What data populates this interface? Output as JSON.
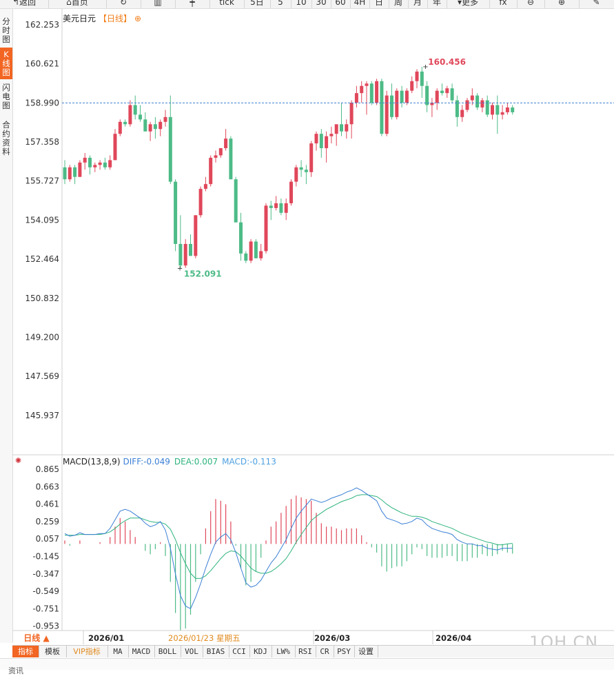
{
  "toolbar": {
    "back_label": "返回",
    "home_label": "首页",
    "tick_label": "tick",
    "periods": [
      "5日",
      "5",
      "10",
      "30",
      "60",
      "4H",
      "日",
      "周",
      "月",
      "年"
    ],
    "more_label": "更多"
  },
  "sidebar": {
    "tabs": [
      {
        "label": "分时图"
      },
      {
        "label": "K线图"
      },
      {
        "label": "闪电图"
      },
      {
        "label": "合约资料"
      }
    ]
  },
  "chart": {
    "symbol": "美元日元",
    "period_tag": "【日线】",
    "plus": "⊕"
  },
  "macd": {
    "name": "MACD(13,8,9)",
    "diff": "DIFF:-0.049",
    "dea": "DEA:0.007",
    "macd": "MACD:-0.113"
  },
  "x_axis": {
    "labels": [
      "2026/01",
      "2026/01/23 星期五",
      "2026/03",
      "2026/04"
    ]
  },
  "period_button": "日线 ▲",
  "indicator_tabs": [
    "指标",
    "模板",
    "VIP指标",
    "MA",
    "MACD",
    "BOLL",
    "VOL",
    "BIAS",
    "CCI",
    "KDJ",
    "LW%",
    "RSI",
    "CR",
    "PSY",
    "设置"
  ],
  "watermark": "1QH.CN",
  "bottom_label": "资讯",
  "colors": {
    "up": "#e0475a",
    "down": "#4dbb87",
    "accent": "#f26522",
    "diff_line": "#3a7fd5",
    "dea_line": "#2db37d",
    "dashed_line": "#3b7fd0"
  },
  "chart_data": [
    {
      "type": "candlestick",
      "title": "美元日元",
      "y_ticks": [
        162.253,
        160.621,
        158.99,
        157.358,
        155.727,
        154.095,
        152.464,
        150.832,
        149.2,
        147.569,
        145.937
      ],
      "ylim": [
        144.5,
        162.7
      ],
      "current_price": 158.99,
      "annotations": {
        "high": 160.456,
        "low": 152.091
      },
      "candles": [
        [
          156.3,
          156.6,
          155.6,
          155.8
        ],
        [
          155.8,
          156.4,
          155.7,
          156.3
        ],
        [
          156.3,
          156.4,
          155.6,
          155.9
        ],
        [
          155.9,
          156.6,
          155.9,
          156.5
        ],
        [
          156.5,
          156.9,
          156.2,
          156.7
        ],
        [
          156.7,
          156.8,
          156.0,
          156.3
        ],
        [
          156.3,
          156.5,
          156.1,
          156.4
        ],
        [
          156.4,
          156.6,
          156.2,
          156.5
        ],
        [
          156.5,
          156.7,
          156.2,
          156.3
        ],
        [
          156.3,
          156.8,
          156.2,
          156.6
        ],
        [
          156.6,
          157.9,
          156.6,
          157.7
        ],
        [
          157.7,
          158.3,
          157.6,
          158.2
        ],
        [
          158.2,
          158.3,
          158.0,
          158.1
        ],
        [
          158.1,
          159.1,
          158.0,
          158.9
        ],
        [
          158.9,
          159.3,
          158.3,
          158.5
        ],
        [
          158.5,
          158.9,
          158.2,
          158.3
        ],
        [
          158.3,
          158.6,
          157.8,
          157.8
        ],
        [
          157.8,
          158.2,
          157.4,
          158.1
        ],
        [
          158.1,
          158.4,
          157.5,
          157.9
        ],
        [
          157.9,
          158.3,
          157.6,
          158.2
        ],
        [
          158.2,
          158.7,
          158.0,
          158.4
        ],
        [
          158.4,
          159.3,
          155.6,
          155.7
        ],
        [
          155.7,
          155.8,
          152.8,
          153.1
        ],
        [
          153.1,
          154.3,
          152.1,
          152.2
        ],
        [
          152.2,
          153.3,
          152.1,
          153.1
        ],
        [
          153.1,
          153.5,
          152.6,
          152.6
        ],
        [
          152.6,
          154.3,
          152.5,
          154.3
        ],
        [
          154.3,
          155.5,
          154.2,
          155.4
        ],
        [
          155.4,
          155.9,
          155.3,
          155.6
        ],
        [
          155.6,
          156.8,
          155.5,
          156.7
        ],
        [
          156.7,
          157.0,
          156.5,
          156.8
        ],
        [
          156.8,
          157.1,
          156.7,
          157.1
        ],
        [
          157.1,
          157.9,
          157.0,
          157.5
        ],
        [
          157.5,
          157.6,
          155.8,
          155.8
        ],
        [
          155.8,
          155.9,
          154.0,
          154.0
        ],
        [
          154.0,
          154.4,
          152.4,
          152.7
        ],
        [
          152.7,
          152.8,
          152.3,
          152.4
        ],
        [
          152.4,
          153.3,
          152.3,
          153.2
        ],
        [
          153.2,
          153.3,
          152.5,
          152.5
        ],
        [
          152.5,
          153.1,
          152.4,
          152.8
        ],
        [
          152.8,
          154.8,
          152.7,
          154.7
        ],
        [
          154.7,
          154.9,
          154.1,
          154.6
        ],
        [
          154.6,
          155.1,
          154.5,
          154.8
        ],
        [
          154.8,
          155.0,
          154.3,
          154.4
        ],
        [
          154.4,
          155.0,
          154.1,
          154.8
        ],
        [
          154.8,
          155.8,
          154.7,
          155.7
        ],
        [
          155.7,
          156.4,
          155.5,
          156.3
        ],
        [
          156.3,
          156.6,
          155.9,
          156.2
        ],
        [
          156.2,
          156.4,
          155.6,
          156.1
        ],
        [
          156.1,
          157.4,
          155.9,
          157.3
        ],
        [
          157.3,
          157.8,
          157.0,
          157.7
        ],
        [
          157.7,
          157.9,
          156.7,
          157.1
        ],
        [
          157.1,
          157.8,
          156.5,
          157.6
        ],
        [
          157.6,
          158.0,
          157.3,
          157.7
        ],
        [
          157.7,
          158.0,
          157.2,
          158.1
        ],
        [
          158.1,
          159.0,
          157.6,
          157.8
        ],
        [
          157.8,
          158.3,
          157.5,
          158.1
        ],
        [
          158.1,
          159.1,
          157.5,
          159.0
        ],
        [
          159.0,
          159.7,
          158.8,
          159.4
        ],
        [
          159.4,
          159.9,
          159.0,
          159.7
        ],
        [
          159.7,
          159.9,
          158.5,
          159.8
        ],
        [
          159.8,
          159.9,
          158.9,
          159.0
        ],
        [
          159.0,
          160.0,
          158.9,
          159.9
        ],
        [
          159.9,
          160.0,
          157.6,
          157.7
        ],
        [
          157.7,
          159.5,
          157.6,
          159.3
        ],
        [
          159.3,
          159.8,
          158.3,
          158.4
        ],
        [
          158.4,
          159.6,
          158.3,
          159.5
        ],
        [
          159.5,
          159.7,
          158.8,
          159.0
        ],
        [
          159.0,
          159.6,
          158.9,
          159.5
        ],
        [
          159.5,
          160.1,
          159.4,
          159.9
        ],
        [
          159.9,
          160.4,
          159.6,
          160.3
        ],
        [
          160.3,
          160.5,
          159.2,
          159.7
        ],
        [
          159.7,
          159.9,
          158.6,
          158.9
        ],
        [
          158.9,
          159.2,
          158.4,
          159.0
        ],
        [
          159.0,
          159.6,
          158.7,
          159.5
        ],
        [
          159.5,
          159.8,
          159.3,
          159.4
        ],
        [
          159.4,
          159.7,
          159.2,
          159.6
        ],
        [
          159.6,
          159.8,
          159.0,
          159.1
        ],
        [
          159.1,
          159.3,
          158.0,
          158.4
        ],
        [
          158.4,
          158.9,
          158.2,
          158.7
        ],
        [
          158.7,
          159.2,
          158.6,
          159.1
        ],
        [
          159.1,
          159.6,
          158.9,
          159.3
        ],
        [
          159.3,
          159.4,
          158.7,
          158.8
        ],
        [
          158.8,
          159.2,
          158.6,
          159.1
        ],
        [
          159.1,
          159.3,
          158.4,
          158.5
        ],
        [
          158.5,
          159.0,
          158.3,
          158.9
        ],
        [
          158.9,
          159.3,
          157.7,
          158.5
        ],
        [
          158.5,
          158.9,
          158.3,
          158.6
        ],
        [
          158.6,
          159.0,
          158.5,
          158.8
        ],
        [
          158.8,
          158.9,
          158.5,
          158.6
        ]
      ]
    },
    {
      "type": "macd",
      "title": "MACD(13,8,9)",
      "y_ticks": [
        0.865,
        0.663,
        0.461,
        0.259,
        0.057,
        -0.145,
        -0.347,
        -0.549,
        -0.751,
        -0.953
      ],
      "ylim": [
        -1.22,
        0.95
      ],
      "series": [
        {
          "name": "DIFF",
          "values": [
            0.12,
            0.09,
            0.1,
            0.13,
            0.11,
            0.11,
            0.11,
            0.12,
            0.12,
            0.18,
            0.28,
            0.38,
            0.4,
            0.38,
            0.34,
            0.3,
            0.24,
            0.2,
            0.22,
            0.26,
            0.16,
            -0.05,
            -0.35,
            -0.6,
            -0.72,
            -0.75,
            -0.62,
            -0.46,
            -0.28,
            -0.12,
            0.02,
            0.08,
            0.12,
            0.05,
            -0.1,
            -0.28,
            -0.45,
            -0.5,
            -0.48,
            -0.42,
            -0.32,
            -0.22,
            -0.15,
            -0.05,
            0.05,
            0.18,
            0.3,
            0.38,
            0.45,
            0.52,
            0.5,
            0.48,
            0.5,
            0.53,
            0.55,
            0.57,
            0.6,
            0.62,
            0.65,
            0.62,
            0.58,
            0.54,
            0.5,
            0.38,
            0.3,
            0.28,
            0.26,
            0.23,
            0.24,
            0.26,
            0.3,
            0.28,
            0.22,
            0.18,
            0.16,
            0.14,
            0.13,
            0.11,
            0.05,
            0.02,
            0.0,
            0.0,
            -0.02,
            -0.02,
            -0.05,
            -0.06,
            -0.07,
            -0.05,
            -0.05,
            -0.049
          ]
        },
        {
          "name": "DEA",
          "values": [
            0.1,
            0.1,
            0.1,
            0.11,
            0.11,
            0.11,
            0.11,
            0.11,
            0.12,
            0.14,
            0.18,
            0.23,
            0.27,
            0.3,
            0.3,
            0.3,
            0.28,
            0.26,
            0.25,
            0.25,
            0.23,
            0.17,
            0.05,
            -0.1,
            -0.23,
            -0.34,
            -0.4,
            -0.4,
            -0.37,
            -0.31,
            -0.24,
            -0.17,
            -0.11,
            -0.08,
            -0.09,
            -0.14,
            -0.21,
            -0.28,
            -0.32,
            -0.34,
            -0.34,
            -0.32,
            -0.28,
            -0.23,
            -0.17,
            -0.08,
            0.02,
            0.11,
            0.19,
            0.27,
            0.32,
            0.36,
            0.4,
            0.43,
            0.46,
            0.49,
            0.51,
            0.53,
            0.56,
            0.57,
            0.57,
            0.56,
            0.55,
            0.51,
            0.46,
            0.42,
            0.39,
            0.36,
            0.34,
            0.32,
            0.32,
            0.31,
            0.29,
            0.26,
            0.24,
            0.22,
            0.2,
            0.18,
            0.15,
            0.12,
            0.1,
            0.08,
            0.06,
            0.04,
            0.02,
            0.01,
            -0.01,
            -0.01,
            0.0,
            0.007
          ]
        },
        {
          "name": "MACD",
          "values": [
            0.04,
            -0.02,
            0.0,
            0.04,
            0.0,
            0.0,
            0.0,
            0.02,
            0.0,
            0.08,
            0.2,
            0.3,
            0.26,
            0.16,
            0.08,
            0.0,
            -0.08,
            -0.12,
            -0.06,
            0.02,
            -0.14,
            -0.44,
            -0.8,
            -1.0,
            -0.98,
            -0.82,
            -0.44,
            -0.12,
            0.18,
            0.38,
            0.52,
            0.5,
            0.46,
            0.26,
            -0.02,
            -0.28,
            -0.48,
            -0.44,
            -0.32,
            -0.16,
            0.04,
            0.2,
            0.26,
            0.36,
            0.44,
            0.52,
            0.56,
            0.54,
            0.52,
            0.5,
            0.36,
            0.24,
            0.2,
            0.2,
            0.18,
            0.16,
            0.18,
            0.18,
            0.18,
            0.1,
            0.02,
            -0.04,
            -0.1,
            -0.26,
            -0.32,
            -0.28,
            -0.26,
            -0.26,
            -0.2,
            -0.12,
            -0.04,
            -0.06,
            -0.14,
            -0.16,
            -0.16,
            -0.16,
            -0.14,
            -0.14,
            -0.2,
            -0.2,
            -0.2,
            -0.16,
            -0.16,
            -0.12,
            -0.14,
            -0.14,
            -0.12,
            -0.08,
            -0.1,
            -0.113
          ]
        }
      ]
    }
  ]
}
